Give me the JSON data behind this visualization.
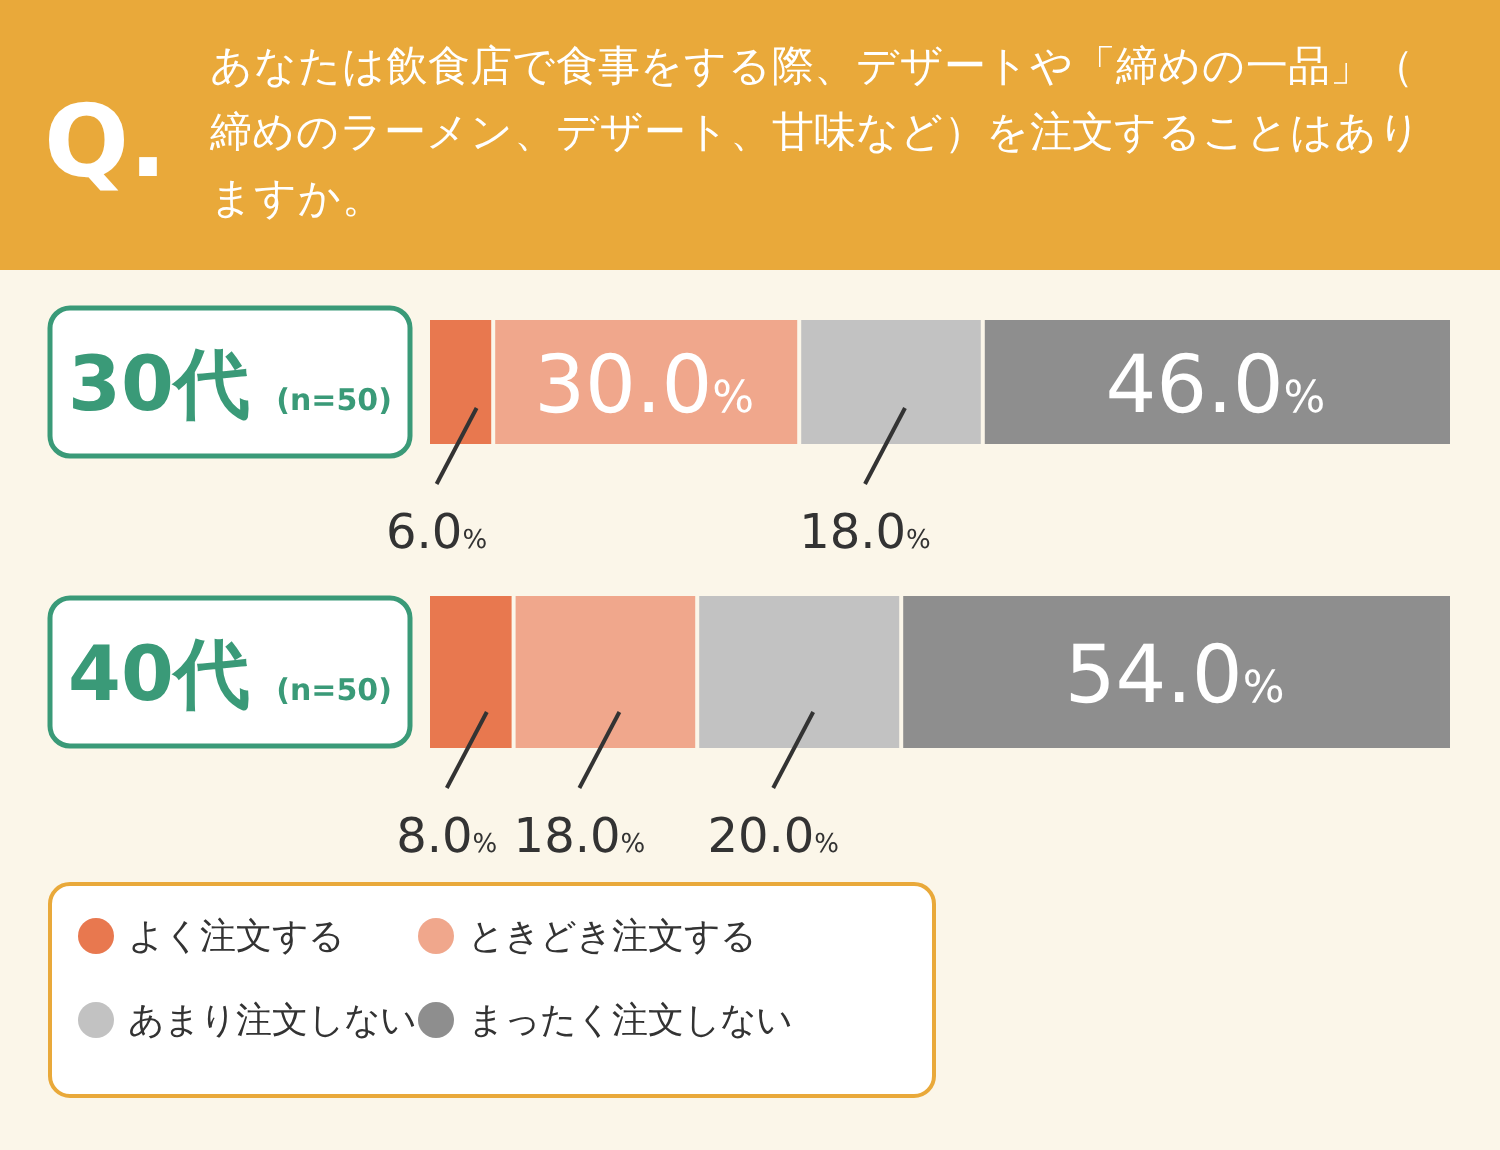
{
  "chart_data": {
    "type": "bar",
    "orientation": "horizontal",
    "stacked": true,
    "title": "あなたは飲食店で食事をする際、デザートや「締めの一品」（締めのラーメン、デザート、甘味など）を注文することはありますか。",
    "annotations": [
      "Q."
    ],
    "categories": [
      "30代 (n=50)",
      "40代 (n=50)"
    ],
    "xlim": [
      0,
      100
    ],
    "series": [
      {
        "name": "よく注文する",
        "color": "#e8784f",
        "values": [
          6.0,
          8.0
        ],
        "value_labels": [
          "6.0%",
          "8.0%"
        ]
      },
      {
        "name": "ときどき注文する",
        "color": "#f0a78c",
        "values": [
          30.0,
          18.0
        ],
        "value_labels": [
          "30.0%",
          "18.0%"
        ]
      },
      {
        "name": "あまり注文しない",
        "color": "#c2c2c2",
        "values": [
          18.0,
          20.0
        ],
        "value_labels": [
          "18.0%",
          "20.0%"
        ]
      },
      {
        "name": "まったく注文しない",
        "color": "#8e8e8e",
        "values": [
          46.0,
          54.0
        ],
        "value_labels": [
          "46.0%",
          "54.0%"
        ]
      }
    ],
    "legend": "bottom left"
  }
}
